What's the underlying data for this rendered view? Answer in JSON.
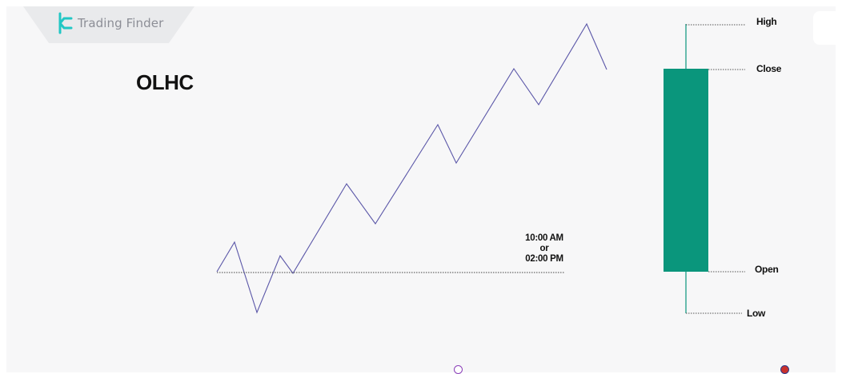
{
  "brand": {
    "name": "Trading Finder"
  },
  "diagram": {
    "title": "OLHC",
    "time_label": {
      "line1": "10:00 AM",
      "line2": "or",
      "line3": "02:00 PM"
    },
    "candle_labels": {
      "high": "High",
      "close": "Close",
      "open": "Open",
      "low": "Low"
    },
    "colors": {
      "candle_body": "#0a967c",
      "candle_wick": "#0a967c",
      "price_line": "#5b57a8",
      "leader": "#555555"
    }
  }
}
